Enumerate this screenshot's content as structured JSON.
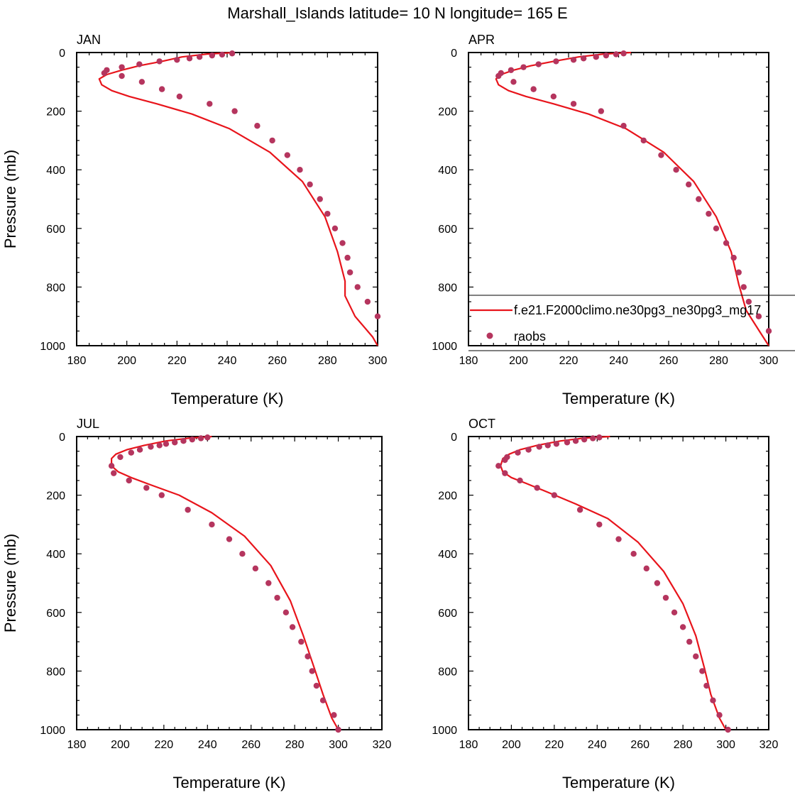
{
  "title": "Marshall_Islands  latitude= 10 N longitude= 165 E",
  "colors": {
    "model_line": "#e8141b",
    "obs_marker": "#b5355e",
    "axis": "#000000"
  },
  "legend": {
    "model_label": "f.e21.F2000climo.ne30pg3_ne30pg3_mg17",
    "obs_label": "raobs",
    "placement": "JAN-right / APR panel, lower area"
  },
  "chart_data": [
    {
      "type": "line",
      "panel": "JAN",
      "title": "JAN",
      "xlabel": "Temperature (K)",
      "ylabel": "Pressure (mb)",
      "xlim": [
        180,
        300
      ],
      "ylim": [
        1000,
        0
      ],
      "x_ticks": [
        180,
        200,
        220,
        240,
        260,
        280,
        300
      ],
      "y_ticks": [
        0,
        200,
        400,
        600,
        800,
        1000
      ],
      "series": [
        {
          "name": "f.e21.F2000climo.ne30pg3_ne30pg3_mg17",
          "kind": "line",
          "x": [
            243,
            232,
            222,
            214,
            205,
            198,
            192,
            189,
            190,
            194,
            201,
            212,
            226,
            241,
            257,
            270,
            279,
            284,
            287,
            287,
            291,
            298,
            300
          ],
          "y": [
            0,
            5,
            15,
            30,
            45,
            60,
            75,
            90,
            110,
            130,
            150,
            175,
            210,
            260,
            340,
            440,
            560,
            680,
            780,
            830,
            900,
            970,
            1000
          ]
        },
        {
          "name": "raobs",
          "kind": "scatter",
          "x": [
            242,
            238,
            234,
            229,
            225,
            220,
            213,
            205,
            198,
            192,
            191,
            198,
            206,
            214,
            221,
            233,
            243,
            252,
            258,
            264,
            269,
            273,
            277,
            280,
            283,
            286,
            288,
            289,
            292,
            296,
            300
          ],
          "y": [
            3,
            7,
            10,
            15,
            20,
            25,
            30,
            40,
            50,
            60,
            70,
            80,
            100,
            125,
            150,
            175,
            200,
            250,
            300,
            350,
            400,
            450,
            500,
            550,
            600,
            650,
            700,
            750,
            800,
            850,
            900
          ]
        }
      ]
    },
    {
      "type": "line",
      "panel": "APR",
      "title": "APR",
      "xlabel": "Temperature (K)",
      "ylabel": "",
      "xlim": [
        180,
        300
      ],
      "ylim": [
        1000,
        0
      ],
      "x_ticks": [
        180,
        200,
        220,
        240,
        260,
        280,
        300
      ],
      "y_ticks": [
        0,
        200,
        400,
        600,
        800,
        1000
      ],
      "series": [
        {
          "name": "f.e21.F2000climo.ne30pg3_ne30pg3_mg17",
          "kind": "line",
          "x": [
            245,
            234,
            224,
            214,
            205,
            198,
            193,
            191,
            192,
            196,
            203,
            214,
            228,
            243,
            258,
            270,
            279,
            285,
            288,
            291,
            297,
            300
          ],
          "y": [
            0,
            5,
            15,
            30,
            45,
            60,
            75,
            90,
            110,
            130,
            150,
            175,
            210,
            260,
            340,
            440,
            560,
            680,
            790,
            880,
            960,
            1000
          ]
        },
        {
          "name": "raobs",
          "kind": "scatter",
          "x": [
            242,
            239,
            235,
            231,
            226,
            222,
            215,
            208,
            202,
            197,
            193,
            192,
            198,
            206,
            214,
            222,
            233,
            242,
            250,
            257,
            263,
            268,
            272,
            276,
            279,
            283,
            286,
            288,
            290,
            292,
            296,
            300
          ],
          "y": [
            3,
            6,
            10,
            15,
            20,
            25,
            30,
            40,
            50,
            60,
            70,
            80,
            100,
            125,
            150,
            175,
            200,
            250,
            300,
            350,
            400,
            450,
            500,
            550,
            600,
            650,
            700,
            750,
            800,
            850,
            900,
            950
          ]
        }
      ]
    },
    {
      "type": "line",
      "panel": "JUL",
      "title": "JUL",
      "xlabel": "Temperature (K)",
      "ylabel": "Pressure (mb)",
      "xlim": [
        180,
        320
      ],
      "ylim": [
        1000,
        0
      ],
      "x_ticks": [
        180,
        200,
        220,
        240,
        260,
        280,
        300,
        320
      ],
      "y_ticks": [
        0,
        200,
        400,
        600,
        800,
        1000
      ],
      "series": [
        {
          "name": "f.e21.F2000climo.ne30pg3_ne30pg3_mg17",
          "kind": "line",
          "x": [
            242,
            232,
            221,
            211,
            203,
            198,
            196,
            196,
            199,
            205,
            214,
            227,
            242,
            257,
            269,
            278,
            284,
            289,
            293,
            297,
            300
          ],
          "y": [
            0,
            5,
            15,
            30,
            45,
            60,
            75,
            100,
            120,
            140,
            165,
            200,
            260,
            340,
            440,
            560,
            680,
            790,
            880,
            960,
            1000
          ]
        },
        {
          "name": "raobs",
          "kind": "scatter",
          "x": [
            240,
            237,
            233,
            229,
            225,
            221,
            218,
            214,
            209,
            205,
            200,
            196,
            197,
            204,
            212,
            219,
            231,
            242,
            250,
            256,
            262,
            268,
            272,
            276,
            279,
            283,
            286,
            288,
            290,
            293,
            298,
            300
          ],
          "y": [
            3,
            6,
            10,
            15,
            20,
            25,
            30,
            35,
            45,
            55,
            70,
            100,
            125,
            150,
            175,
            200,
            250,
            300,
            350,
            400,
            450,
            500,
            550,
            600,
            650,
            700,
            750,
            800,
            850,
            900,
            950,
            1000
          ]
        }
      ]
    },
    {
      "type": "line",
      "panel": "OCT",
      "title": "OCT",
      "xlabel": "Temperature (K)",
      "ylabel": "",
      "xlim": [
        180,
        320
      ],
      "ylim": [
        1000,
        0
      ],
      "x_ticks": [
        180,
        200,
        220,
        240,
        260,
        280,
        300,
        320
      ],
      "y_ticks": [
        0,
        200,
        400,
        600,
        800,
        1000
      ],
      "series": [
        {
          "name": "f.e21.F2000climo.ne30pg3_ne30pg3_mg17",
          "kind": "line",
          "x": [
            246,
            234,
            223,
            212,
            204,
            199,
            196,
            195,
            196,
            200,
            207,
            217,
            230,
            245,
            259,
            271,
            280,
            286,
            290,
            293,
            297,
            300
          ],
          "y": [
            0,
            5,
            15,
            30,
            45,
            60,
            75,
            100,
            120,
            140,
            160,
            190,
            230,
            280,
            360,
            460,
            570,
            680,
            790,
            880,
            960,
            1000
          ]
        },
        {
          "name": "raobs",
          "kind": "scatter",
          "x": [
            241,
            238,
            234,
            230,
            226,
            221,
            217,
            213,
            208,
            203,
            198,
            197,
            194,
            197,
            204,
            212,
            220,
            232,
            241,
            250,
            257,
            263,
            268,
            272,
            276,
            280,
            283,
            286,
            289,
            291,
            294,
            297,
            301
          ],
          "y": [
            3,
            6,
            10,
            15,
            20,
            25,
            30,
            35,
            45,
            55,
            70,
            80,
            100,
            125,
            150,
            175,
            200,
            250,
            300,
            350,
            400,
            450,
            500,
            550,
            600,
            650,
            700,
            750,
            800,
            850,
            900,
            950,
            1000
          ]
        }
      ]
    }
  ]
}
